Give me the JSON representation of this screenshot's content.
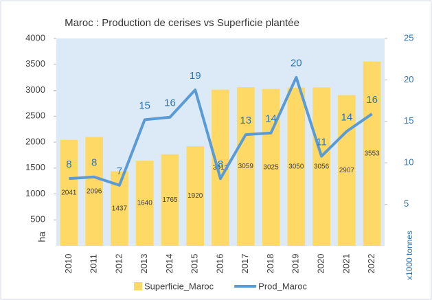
{
  "chart_data": {
    "type": "bar-line",
    "title": "Maroc : Production de cerises vs Superficie plantée",
    "y_label": "ha",
    "y2_label": "x1000 tonnes",
    "categories": [
      "2010",
      "2011",
      "2012",
      "2013",
      "2014",
      "2015",
      "2016",
      "2017",
      "2018",
      "2019",
      "2020",
      "2021",
      "2022"
    ],
    "series": [
      {
        "name": "Superficie_Maroc",
        "color": "#ffd966",
        "type": "bar",
        "values": [
          2041,
          2096,
          1437,
          1640,
          1765,
          1920,
          3012,
          3059,
          3025,
          3050,
          3056,
          2907,
          3553
        ]
      },
      {
        "name": "Prod_Maroc",
        "color": "#5b9bd5",
        "type": "line",
        "axis": "y2",
        "values": [
          8.1,
          8.3,
          7.3,
          15.2,
          15.5,
          18.8,
          8.1,
          13.4,
          13.6,
          20.3,
          10.8,
          13.8,
          15.9
        ],
        "value_labels": [
          "8",
          "8",
          "7",
          "15",
          "16",
          "19",
          "8",
          "13",
          "14",
          "20",
          "11",
          "14",
          "16"
        ]
      }
    ],
    "ylim": [
      0,
      4000
    ],
    "yticks": [
      500,
      1000,
      1500,
      2000,
      2500,
      3000,
      3500,
      4000
    ],
    "y2lim": [
      0,
      25
    ],
    "y2ticks": [
      5,
      10,
      15,
      20,
      25
    ]
  }
}
